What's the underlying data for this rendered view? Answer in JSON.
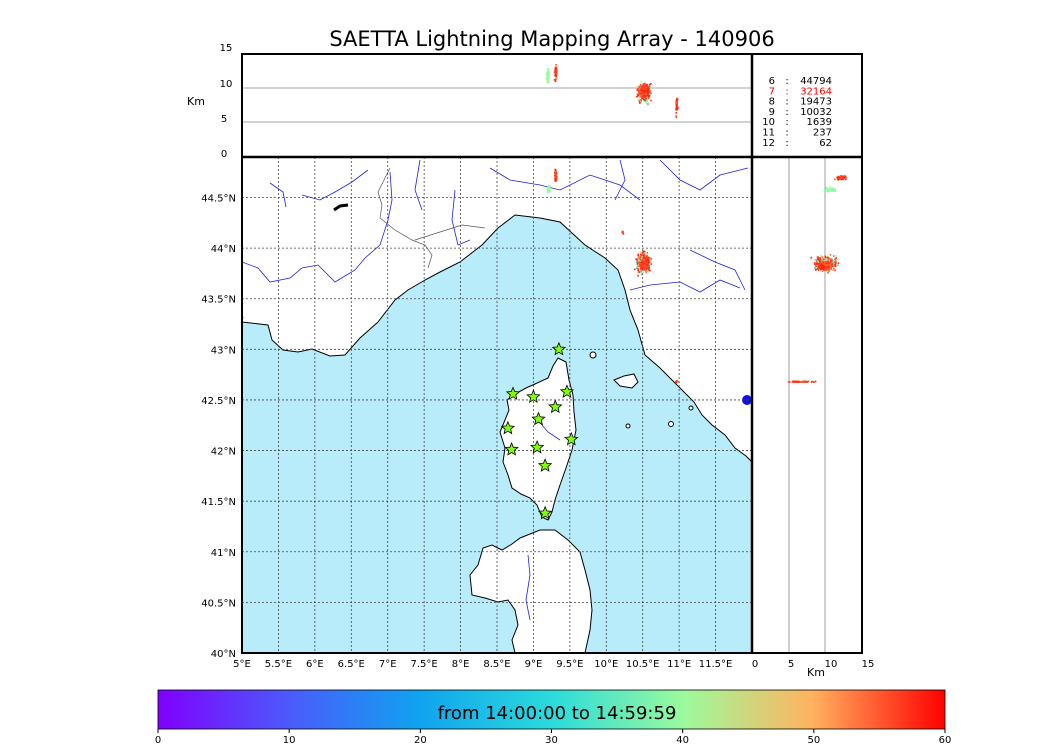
{
  "title": "SAETTA Lightning Mapping Array - 140906",
  "top_panel": {
    "ylabel": "Km",
    "yticks": [
      "0",
      "5",
      "10",
      "15"
    ],
    "gridlines_km": [
      5,
      10
    ]
  },
  "side_panel": {
    "xlabel": "Km",
    "xticks": [
      "0",
      "5",
      "10",
      "15"
    ],
    "gridlines_km": [
      5,
      10
    ]
  },
  "map": {
    "lat_labels": [
      "40°N",
      "40.5°N",
      "41°N",
      "41.5°N",
      "42°N",
      "42.5°N",
      "43°N",
      "43.5°N",
      "44°N",
      "44.5°N"
    ],
    "lon_labels": [
      "5°E",
      "5.5°E",
      "6°E",
      "6.5°E",
      "7°E",
      "7.5°E",
      "8°E",
      "8.5°E",
      "9°E",
      "9.5°E",
      "10°E",
      "10.5°E",
      "11°E",
      "11.5°E"
    ],
    "sea_color": "#b8ecfb",
    "land_color": "#ffffff",
    "river_color": "#2020e0",
    "station_icon": "star-icon",
    "station_color": "#7fff00",
    "stations": [
      {
        "lon": 9.35,
        "lat": 43.0
      },
      {
        "lon": 8.72,
        "lat": 42.56
      },
      {
        "lon": 9.0,
        "lat": 42.53
      },
      {
        "lon": 9.46,
        "lat": 42.58
      },
      {
        "lon": 9.3,
        "lat": 42.43
      },
      {
        "lon": 9.07,
        "lat": 42.31
      },
      {
        "lon": 8.65,
        "lat": 42.22
      },
      {
        "lon": 9.52,
        "lat": 42.11
      },
      {
        "lon": 8.7,
        "lat": 42.01
      },
      {
        "lon": 9.05,
        "lat": 42.03
      },
      {
        "lon": 9.16,
        "lat": 41.85
      },
      {
        "lon": 9.16,
        "lat": 41.38
      }
    ]
  },
  "counts": [
    {
      "km": "6",
      "count": "44794",
      "color": "#000000"
    },
    {
      "km": "7",
      "count": "32164",
      "color": "#ff0000"
    },
    {
      "km": "8",
      "count": "19473",
      "color": "#000000"
    },
    {
      "km": "9",
      "count": "10032",
      "color": "#000000"
    },
    {
      "km": "10",
      "count": "1639",
      "color": "#000000"
    },
    {
      "km": "11",
      "count": "237",
      "color": "#000000"
    },
    {
      "km": "12",
      "count": "62",
      "color": "#000000"
    }
  ],
  "colorbar": {
    "label": "from 14:00:00 to 14:59:59",
    "ticks": [
      "0",
      "10",
      "20",
      "30",
      "40",
      "50",
      "60"
    ],
    "colormap": "rainbow"
  }
}
